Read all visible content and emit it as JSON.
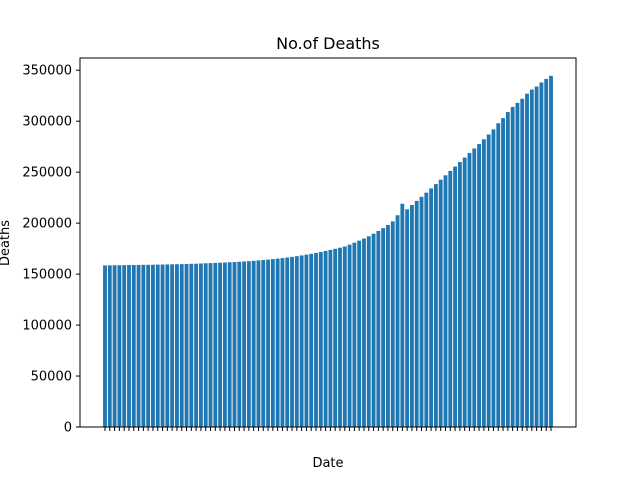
{
  "chart_data": {
    "type": "bar",
    "title": "No.of Deaths",
    "xlabel": "Date",
    "ylabel": "Deaths",
    "ylim": [
      0,
      362000
    ],
    "yticks": [
      0,
      50000,
      100000,
      150000,
      200000,
      250000,
      300000,
      350000
    ],
    "grid": false,
    "legend": "none",
    "bar_color": "#1f77b4",
    "x_tick_labels_note": "Date tick labels are overlapping and illegible in the original",
    "values": [
      158500,
      158600,
      158700,
      158700,
      158800,
      158900,
      158900,
      159000,
      159100,
      159100,
      159200,
      159300,
      159400,
      159500,
      159600,
      159700,
      159800,
      159900,
      160100,
      160200,
      160400,
      160600,
      160800,
      161000,
      161200,
      161400,
      161600,
      161800,
      162100,
      162400,
      162700,
      163000,
      163400,
      163800,
      164200,
      164700,
      165200,
      165700,
      166300,
      166900,
      167600,
      168300,
      169100,
      169900,
      170800,
      171700,
      172700,
      173700,
      174800,
      175900,
      177100,
      178900,
      180800,
      182800,
      184900,
      187100,
      189600,
      192300,
      195100,
      198200,
      201700,
      207700,
      219000,
      213500,
      217800,
      221800,
      225800,
      229900,
      234000,
      238300,
      242600,
      246900,
      251200,
      255500,
      259900,
      264300,
      268800,
      273200,
      277600,
      282300,
      287000,
      292000,
      298000,
      303000,
      309000,
      314000,
      318000,
      322000,
      327000,
      331000,
      334000,
      338000,
      341500,
      344500
    ]
  }
}
